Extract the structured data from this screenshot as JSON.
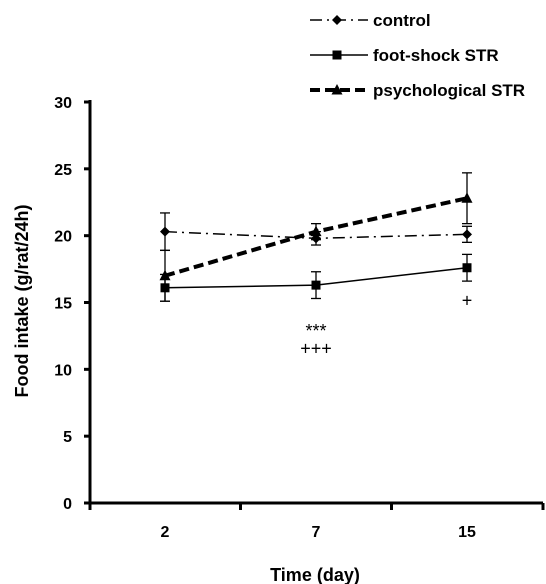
{
  "chart_data": {
    "type": "line",
    "title": "",
    "xlabel": "Time (day)",
    "ylabel": "Food intake (g/rat/24h)",
    "categories": [
      "2",
      "7",
      "15"
    ],
    "ylim": [
      0,
      30
    ],
    "yticks": [
      0,
      5,
      10,
      15,
      20,
      25,
      30
    ],
    "grid": false,
    "legend_position": "top-right",
    "series": [
      {
        "name": "control",
        "values": [
          20.3,
          19.8,
          20.1
        ],
        "errors": [
          1.4,
          0.5,
          0.6
        ],
        "line_style": "dash-dot",
        "marker": "diamond"
      },
      {
        "name": "foot-shock STR",
        "values": [
          16.1,
          16.3,
          17.6
        ],
        "errors": [
          1.0,
          1.0,
          1.0
        ],
        "line_style": "solid",
        "marker": "square"
      },
      {
        "name": "psychological STR",
        "values": [
          17.0,
          20.3,
          22.8
        ],
        "errors": [
          1.9,
          0.6,
          1.9
        ],
        "line_style": "bold-dashed",
        "marker": "triangle"
      }
    ],
    "annotations": [
      {
        "category": "7",
        "y": 13.0,
        "text": "***"
      },
      {
        "category": "7",
        "y": 11.7,
        "text": "+++"
      },
      {
        "category": "15",
        "y": 15.3,
        "text": "+"
      }
    ]
  }
}
